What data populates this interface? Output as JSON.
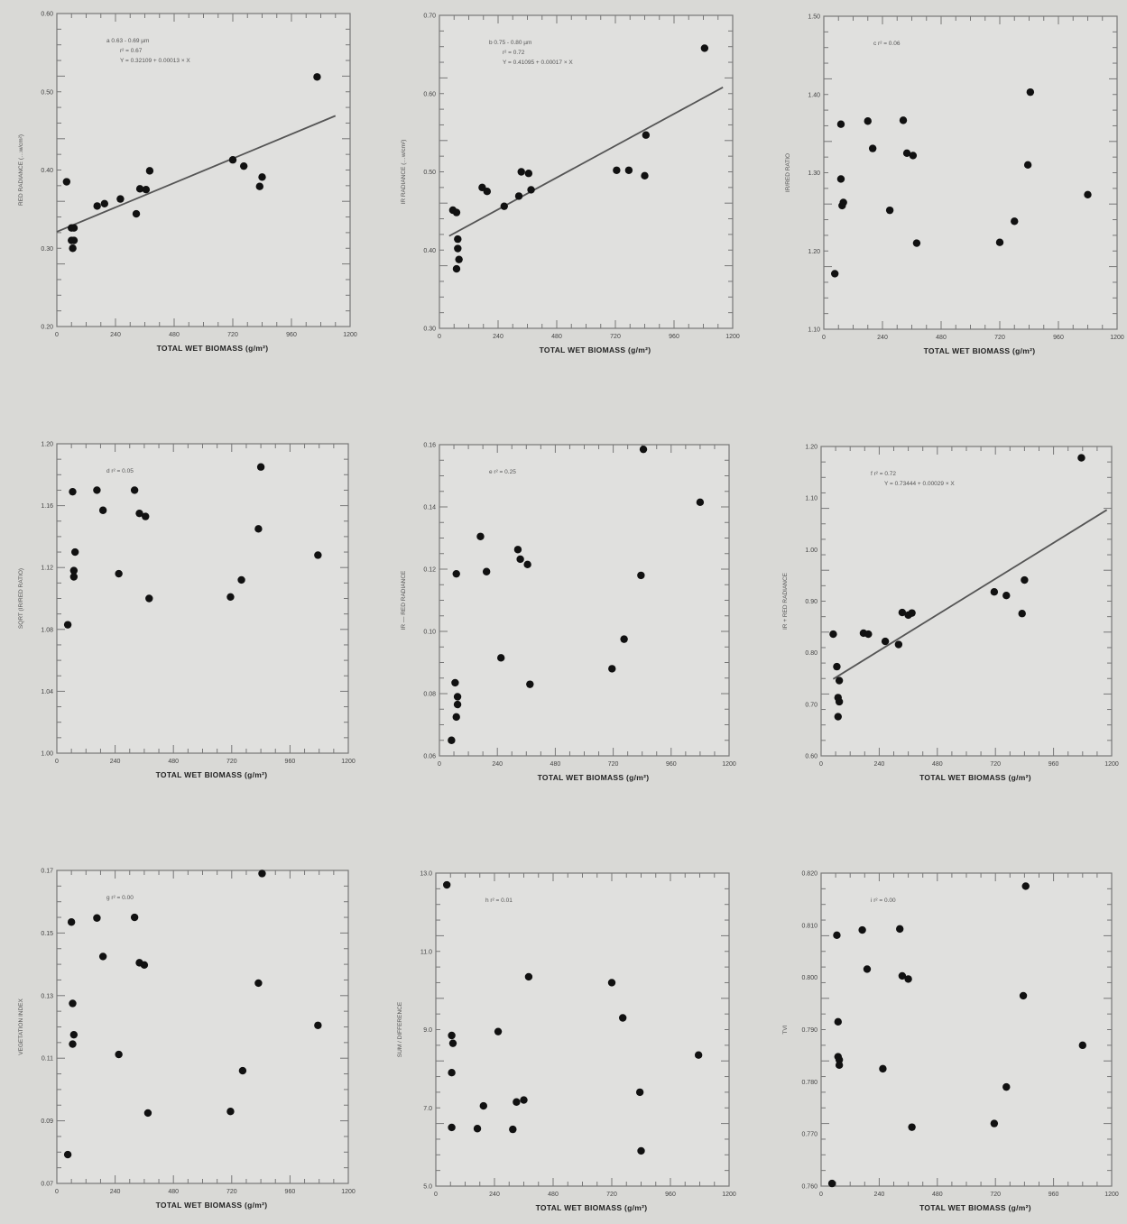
{
  "chart_data": [
    {
      "type": "scatter",
      "xlabel": "TOTAL WET BIOMASS (g/m²)",
      "ylabel": "RED RADIANCE (…w/cm²)",
      "xlim": [
        0,
        1200
      ],
      "xticks": [
        0,
        240,
        480,
        720,
        960,
        1200
      ],
      "ylim": [
        0.2,
        0.6
      ],
      "yticks": [
        "0.20",
        "0.30",
        "0.40",
        "0.50",
        "0.60"
      ],
      "annotations": [
        "a  0.63 - 0.69 µm",
        "r² = 0.67",
        "Y = 0.32109 + 0.00013 × X"
      ],
      "fit": {
        "x": [
          0,
          1140
        ],
        "y": [
          0.3211,
          0.4693
        ]
      },
      "points": [
        {
          "x": 40,
          "y": 0.385
        },
        {
          "x": 60,
          "y": 0.326
        },
        {
          "x": 70,
          "y": 0.326
        },
        {
          "x": 60,
          "y": 0.31
        },
        {
          "x": 70,
          "y": 0.31
        },
        {
          "x": 65,
          "y": 0.3
        },
        {
          "x": 165,
          "y": 0.354
        },
        {
          "x": 195,
          "y": 0.357
        },
        {
          "x": 260,
          "y": 0.363
        },
        {
          "x": 325,
          "y": 0.344
        },
        {
          "x": 340,
          "y": 0.376
        },
        {
          "x": 365,
          "y": 0.375
        },
        {
          "x": 380,
          "y": 0.399
        },
        {
          "x": 720,
          "y": 0.413
        },
        {
          "x": 765,
          "y": 0.405
        },
        {
          "x": 830,
          "y": 0.379
        },
        {
          "x": 840,
          "y": 0.391
        },
        {
          "x": 1065,
          "y": 0.519
        }
      ]
    },
    {
      "type": "scatter",
      "xlabel": "TOTAL WET BIOMASS (g/m²)",
      "ylabel": "IR RADIANCE (…w/cm²)",
      "xlim": [
        0,
        1200
      ],
      "xticks": [
        0,
        240,
        480,
        720,
        960,
        1200
      ],
      "ylim": [
        0.3,
        0.7
      ],
      "yticks": [
        "0.30",
        "0.40",
        "0.50",
        "0.60",
        "0.70"
      ],
      "annotations": [
        "b  0.75 - 0.80 µm",
        "r² = 0.72",
        "Y = 0.41095 + 0.00017 × X"
      ],
      "fit": {
        "x": [
          40,
          1160
        ],
        "y": [
          0.418,
          0.608
        ]
      },
      "points": [
        {
          "x": 55,
          "y": 0.451
        },
        {
          "x": 70,
          "y": 0.448
        },
        {
          "x": 75,
          "y": 0.414
        },
        {
          "x": 75,
          "y": 0.402
        },
        {
          "x": 80,
          "y": 0.388
        },
        {
          "x": 70,
          "y": 0.376
        },
        {
          "x": 175,
          "y": 0.48
        },
        {
          "x": 195,
          "y": 0.475
        },
        {
          "x": 265,
          "y": 0.456
        },
        {
          "x": 325,
          "y": 0.469
        },
        {
          "x": 335,
          "y": 0.5
        },
        {
          "x": 365,
          "y": 0.498
        },
        {
          "x": 375,
          "y": 0.477
        },
        {
          "x": 725,
          "y": 0.502
        },
        {
          "x": 775,
          "y": 0.502
        },
        {
          "x": 840,
          "y": 0.495
        },
        {
          "x": 845,
          "y": 0.547
        },
        {
          "x": 1085,
          "y": 0.658
        }
      ]
    },
    {
      "type": "scatter",
      "xlabel": "TOTAL WET BIOMASS (g/m²)",
      "ylabel": "IR/RED RATIO",
      "xlim": [
        0,
        1200
      ],
      "xticks": [
        0,
        240,
        480,
        720,
        960,
        1200
      ],
      "ylim": [
        1.1,
        1.5
      ],
      "yticks": [
        "1.10",
        "1.20",
        "1.30",
        "1.40",
        "1.50"
      ],
      "annotations": [
        "c  r² = 0.06"
      ],
      "points": [
        {
          "x": 45,
          "y": 1.171
        },
        {
          "x": 70,
          "y": 1.362
        },
        {
          "x": 70,
          "y": 1.292
        },
        {
          "x": 75,
          "y": 1.258
        },
        {
          "x": 80,
          "y": 1.262
        },
        {
          "x": 180,
          "y": 1.366
        },
        {
          "x": 200,
          "y": 1.331
        },
        {
          "x": 270,
          "y": 1.252
        },
        {
          "x": 325,
          "y": 1.367
        },
        {
          "x": 340,
          "y": 1.325
        },
        {
          "x": 365,
          "y": 1.322
        },
        {
          "x": 380,
          "y": 1.21
        },
        {
          "x": 720,
          "y": 1.211
        },
        {
          "x": 780,
          "y": 1.238
        },
        {
          "x": 835,
          "y": 1.31
        },
        {
          "x": 845,
          "y": 1.403
        },
        {
          "x": 1080,
          "y": 1.272
        }
      ]
    },
    {
      "type": "scatter",
      "xlabel": "TOTAL WET BIOMASS (g/m²)",
      "ylabel": "SQRT (IR/RED RATIO)",
      "xlim": [
        0,
        1200
      ],
      "xticks": [
        0,
        240,
        480,
        720,
        960,
        1200
      ],
      "ylim": [
        1.0,
        1.2
      ],
      "yticks": [
        "1.00",
        "1.04",
        "1.08",
        "1.12",
        "1.16",
        "1.20"
      ],
      "annotations": [
        "d  r² = 0.05"
      ],
      "points": [
        {
          "x": 45,
          "y": 1.083
        },
        {
          "x": 65,
          "y": 1.169
        },
        {
          "x": 70,
          "y": 1.114
        },
        {
          "x": 70,
          "y": 1.118
        },
        {
          "x": 75,
          "y": 1.13
        },
        {
          "x": 165,
          "y": 1.17
        },
        {
          "x": 190,
          "y": 1.157
        },
        {
          "x": 255,
          "y": 1.116
        },
        {
          "x": 320,
          "y": 1.17
        },
        {
          "x": 340,
          "y": 1.155
        },
        {
          "x": 365,
          "y": 1.153
        },
        {
          "x": 380,
          "y": 1.1
        },
        {
          "x": 715,
          "y": 1.101
        },
        {
          "x": 760,
          "y": 1.112
        },
        {
          "x": 830,
          "y": 1.145
        },
        {
          "x": 840,
          "y": 1.185
        },
        {
          "x": 1075,
          "y": 1.128
        }
      ]
    },
    {
      "type": "scatter",
      "xlabel": "TOTAL WET BIOMASS (g/m²)",
      "ylabel": "IR — RED RADIANCE",
      "xlim": [
        0,
        1200
      ],
      "xticks": [
        0,
        240,
        480,
        720,
        960,
        1200
      ],
      "ylim": [
        0.06,
        0.16
      ],
      "yticks": [
        "0.06",
        "0.08",
        "0.10",
        "0.12",
        "0.14",
        "0.16"
      ],
      "annotations": [
        "e  r² = 0.25"
      ],
      "points": [
        {
          "x": 50,
          "y": 0.065
        },
        {
          "x": 65,
          "y": 0.0835
        },
        {
          "x": 70,
          "y": 0.0725
        },
        {
          "x": 75,
          "y": 0.0765
        },
        {
          "x": 75,
          "y": 0.079
        },
        {
          "x": 70,
          "y": 0.1185
        },
        {
          "x": 170,
          "y": 0.1305
        },
        {
          "x": 195,
          "y": 0.1192
        },
        {
          "x": 255,
          "y": 0.0915
        },
        {
          "x": 325,
          "y": 0.1263
        },
        {
          "x": 335,
          "y": 0.1232
        },
        {
          "x": 365,
          "y": 0.1215
        },
        {
          "x": 375,
          "y": 0.083
        },
        {
          "x": 715,
          "y": 0.088
        },
        {
          "x": 765,
          "y": 0.0975
        },
        {
          "x": 835,
          "y": 0.118
        },
        {
          "x": 845,
          "y": 0.1585
        },
        {
          "x": 1080,
          "y": 0.1415
        }
      ]
    },
    {
      "type": "scatter",
      "xlabel": "TOTAL WET BIOMASS (g/m²)",
      "ylabel": "IR + RED RADIANCE",
      "xlim": [
        0,
        1200
      ],
      "xticks": [
        0,
        240,
        480,
        720,
        960,
        1200
      ],
      "ylim": [
        0.6,
        1.2
      ],
      "yticks": [
        "0.60",
        "0.70",
        "0.80",
        "0.90",
        "1.00",
        "1.10",
        "1.20"
      ],
      "annotations": [
        "f  r² = 0.72",
        "Y = 0.73444 + 0.00029 × X"
      ],
      "fit": {
        "x": [
          50,
          1180
        ],
        "y": [
          0.749,
          1.077
        ]
      },
      "points": [
        {
          "x": 50,
          "y": 0.836
        },
        {
          "x": 65,
          "y": 0.773
        },
        {
          "x": 70,
          "y": 0.713
        },
        {
          "x": 75,
          "y": 0.746
        },
        {
          "x": 75,
          "y": 0.705
        },
        {
          "x": 70,
          "y": 0.676
        },
        {
          "x": 175,
          "y": 0.838
        },
        {
          "x": 195,
          "y": 0.836
        },
        {
          "x": 265,
          "y": 0.822
        },
        {
          "x": 320,
          "y": 0.816
        },
        {
          "x": 335,
          "y": 0.878
        },
        {
          "x": 360,
          "y": 0.873
        },
        {
          "x": 375,
          "y": 0.877
        },
        {
          "x": 715,
          "y": 0.918
        },
        {
          "x": 765,
          "y": 0.911
        },
        {
          "x": 830,
          "y": 0.876
        },
        {
          "x": 840,
          "y": 0.941
        },
        {
          "x": 1075,
          "y": 1.178
        }
      ]
    },
    {
      "type": "scatter",
      "xlabel": "TOTAL WET BIOMASS (g/m²)",
      "ylabel": "VEGETATION INDEX",
      "xlim": [
        0,
        1200
      ],
      "xticks": [
        0,
        240,
        480,
        720,
        960,
        1200
      ],
      "ylim": [
        0.07,
        0.17
      ],
      "yticks": [
        "0.07",
        "0.09",
        "0.11",
        "0.13",
        "0.15",
        "0.17"
      ],
      "annotations": [
        "g  r² = 0.00"
      ],
      "points": [
        {
          "x": 45,
          "y": 0.0792
        },
        {
          "x": 60,
          "y": 0.1535
        },
        {
          "x": 65,
          "y": 0.1145
        },
        {
          "x": 70,
          "y": 0.1175
        },
        {
          "x": 65,
          "y": 0.1275
        },
        {
          "x": 165,
          "y": 0.1548
        },
        {
          "x": 190,
          "y": 0.1425
        },
        {
          "x": 255,
          "y": 0.1112
        },
        {
          "x": 320,
          "y": 0.155
        },
        {
          "x": 340,
          "y": 0.1405
        },
        {
          "x": 360,
          "y": 0.1398
        },
        {
          "x": 375,
          "y": 0.0925
        },
        {
          "x": 715,
          "y": 0.093
        },
        {
          "x": 765,
          "y": 0.106
        },
        {
          "x": 830,
          "y": 0.134
        },
        {
          "x": 845,
          "y": 0.169
        },
        {
          "x": 1075,
          "y": 0.1205
        }
      ]
    },
    {
      "type": "scatter",
      "xlabel": "TOTAL WET BIOMASS (g/m²)",
      "ylabel": "SUM / DIFFERENCE",
      "xlim": [
        0,
        1200
      ],
      "xticks": [
        0,
        240,
        480,
        720,
        960,
        1200
      ],
      "ylim": [
        5.0,
        13.0
      ],
      "yticks": [
        "5.0",
        "7.0",
        "9.0",
        "11.0",
        "13.0"
      ],
      "annotations": [
        "h  r² = 0.01"
      ],
      "points": [
        {
          "x": 45,
          "y": 12.7
        },
        {
          "x": 65,
          "y": 8.85
        },
        {
          "x": 70,
          "y": 8.65
        },
        {
          "x": 65,
          "y": 7.9
        },
        {
          "x": 65,
          "y": 6.5
        },
        {
          "x": 170,
          "y": 6.47
        },
        {
          "x": 195,
          "y": 7.05
        },
        {
          "x": 255,
          "y": 8.95
        },
        {
          "x": 315,
          "y": 6.45
        },
        {
          "x": 330,
          "y": 7.15
        },
        {
          "x": 360,
          "y": 7.2
        },
        {
          "x": 380,
          "y": 10.35
        },
        {
          "x": 720,
          "y": 10.2
        },
        {
          "x": 765,
          "y": 9.3
        },
        {
          "x": 835,
          "y": 7.4
        },
        {
          "x": 840,
          "y": 5.9
        },
        {
          "x": 1075,
          "y": 8.35
        }
      ]
    },
    {
      "type": "scatter",
      "xlabel": "TOTAL WET BIOMASS (g/m²)",
      "ylabel": "TVI",
      "xlim": [
        0,
        1200
      ],
      "xticks": [
        0,
        240,
        480,
        720,
        960,
        1200
      ],
      "ylim": [
        0.76,
        0.82
      ],
      "yticks": [
        "0.760",
        "0.770",
        "0.780",
        "0.790",
        "0.800",
        "0.810",
        "0.820"
      ],
      "annotations": [
        "i  r² = 0.00"
      ],
      "points": [
        {
          "x": 45,
          "y": 0.7605
        },
        {
          "x": 65,
          "y": 0.8081
        },
        {
          "x": 70,
          "y": 0.7915
        },
        {
          "x": 75,
          "y": 0.7842
        },
        {
          "x": 75,
          "y": 0.7832
        },
        {
          "x": 70,
          "y": 0.7848
        },
        {
          "x": 170,
          "y": 0.8091
        },
        {
          "x": 190,
          "y": 0.8016
        },
        {
          "x": 255,
          "y": 0.7825
        },
        {
          "x": 325,
          "y": 0.8093
        },
        {
          "x": 335,
          "y": 0.8003
        },
        {
          "x": 360,
          "y": 0.7997
        },
        {
          "x": 375,
          "y": 0.7713
        },
        {
          "x": 715,
          "y": 0.772
        },
        {
          "x": 765,
          "y": 0.779
        },
        {
          "x": 835,
          "y": 0.7965
        },
        {
          "x": 845,
          "y": 0.8175
        },
        {
          "x": 1080,
          "y": 0.787
        }
      ]
    }
  ]
}
